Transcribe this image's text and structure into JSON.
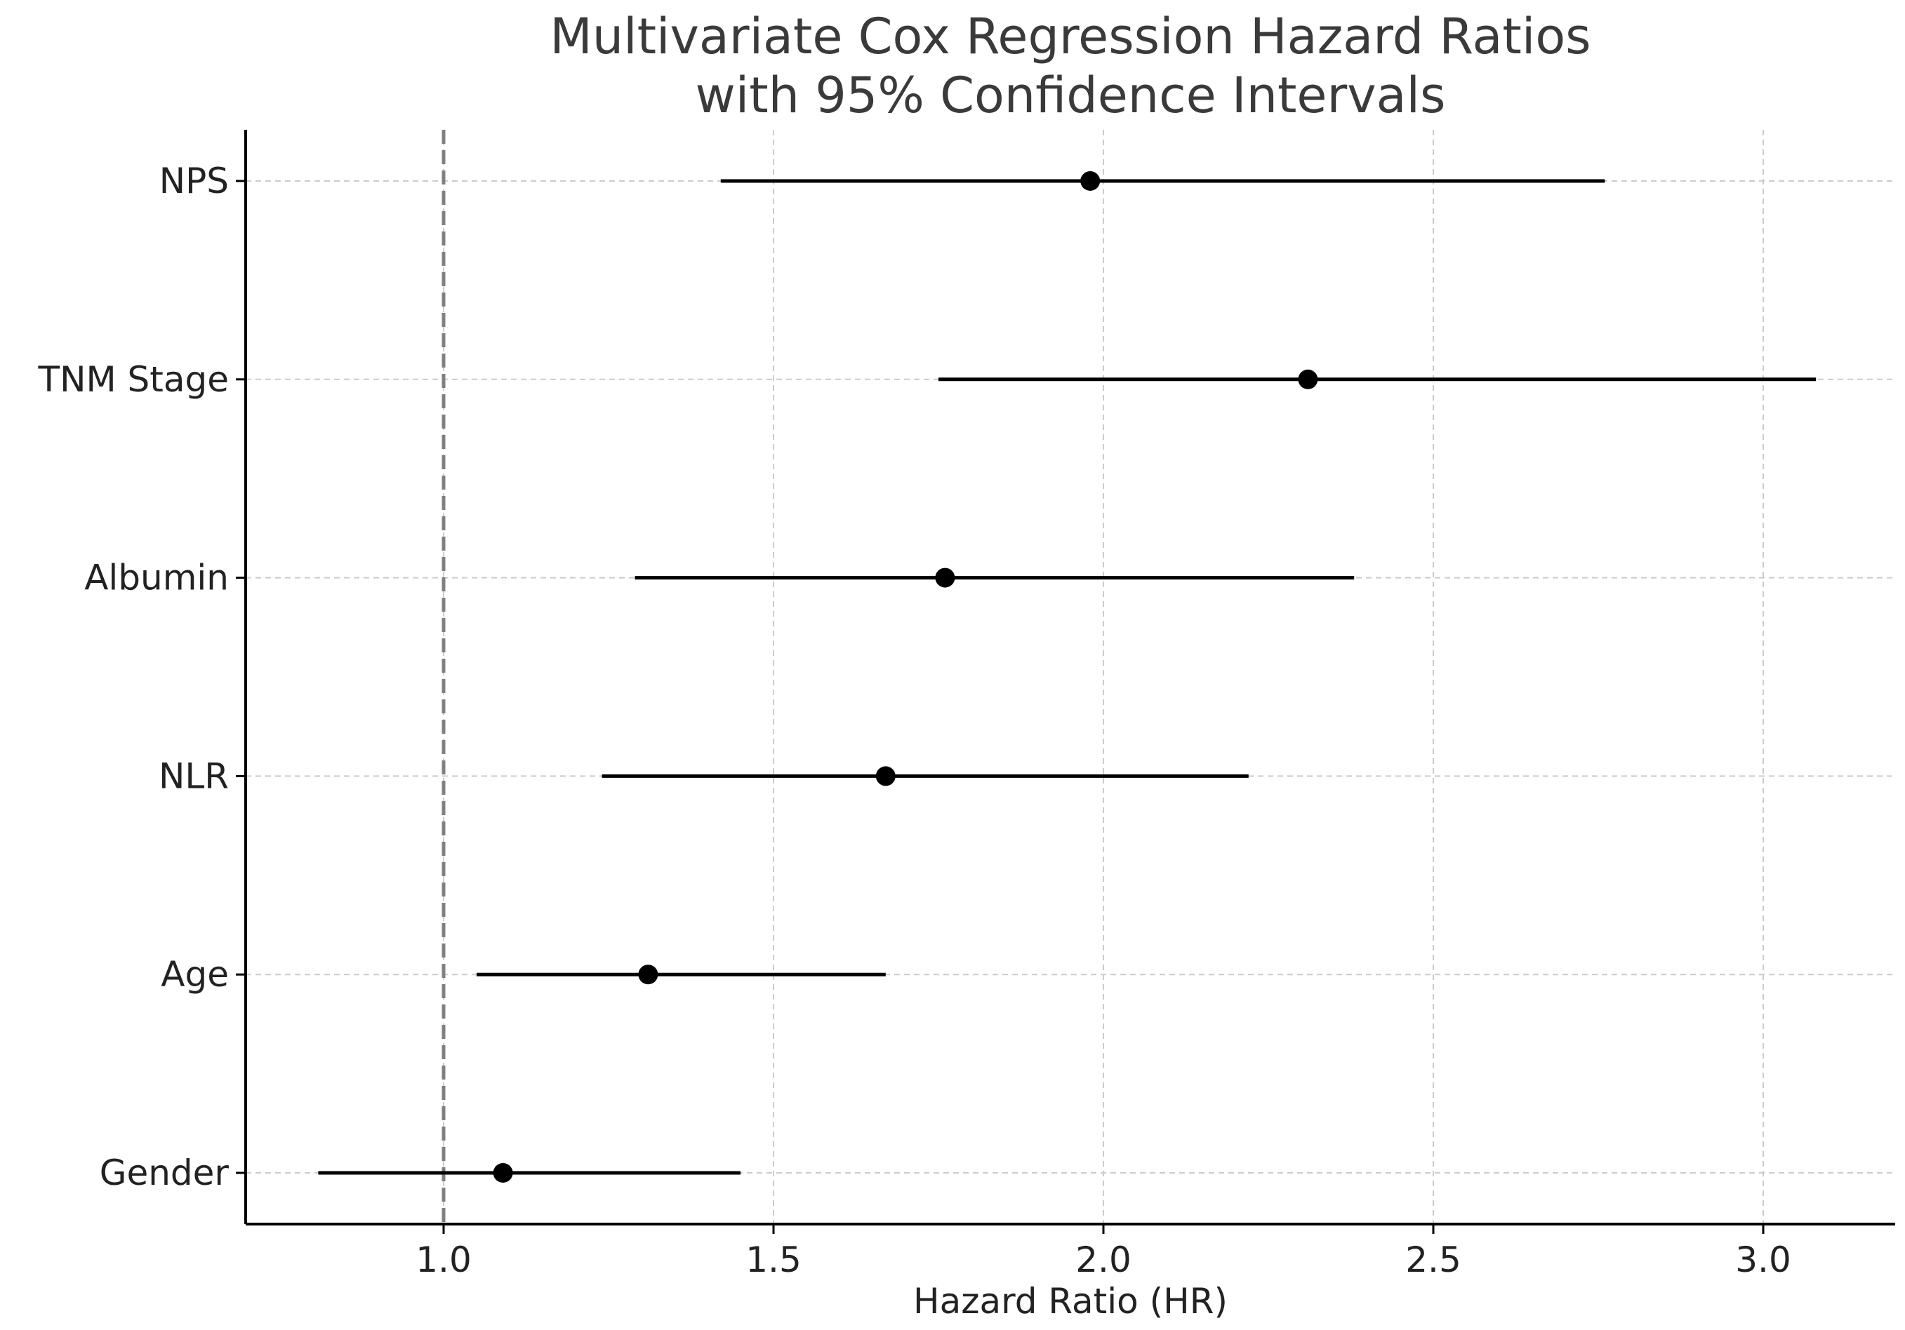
{
  "chart_data": {
    "type": "scatter",
    "subtype": "forest-plot",
    "title_lines": [
      "Multivariate Cox Regression Hazard Ratios",
      "with 95% Confidence Intervals"
    ],
    "xlabel": "Hazard Ratio (HR)",
    "ylabel": "",
    "xlim": [
      0.7,
      3.2
    ],
    "xticks": [
      1.0,
      1.5,
      2.0,
      2.5,
      3.0
    ],
    "xtick_labels": [
      "1.0",
      "1.5",
      "2.0",
      "2.5",
      "3.0"
    ],
    "reference_line": 1.0,
    "grid": true,
    "rows": [
      {
        "label": "NPS",
        "hr": 1.98,
        "ci_low": 1.42,
        "ci_high": 2.76
      },
      {
        "label": "TNM Stage",
        "hr": 2.31,
        "ci_low": 1.75,
        "ci_high": 3.08
      },
      {
        "label": "Albumin",
        "hr": 1.76,
        "ci_low": 1.29,
        "ci_high": 2.38
      },
      {
        "label": "NLR",
        "hr": 1.67,
        "ci_low": 1.24,
        "ci_high": 2.22
      },
      {
        "label": "Age",
        "hr": 1.31,
        "ci_low": 1.05,
        "ci_high": 1.67
      },
      {
        "label": "Gender",
        "hr": 1.09,
        "ci_low": 0.81,
        "ci_high": 1.45
      }
    ],
    "colors": {
      "marker": "#000000",
      "ci_line": "#000000",
      "reference_line": "#808080",
      "grid": "#cccccc",
      "axis": "#000000",
      "text": "#222222"
    }
  }
}
